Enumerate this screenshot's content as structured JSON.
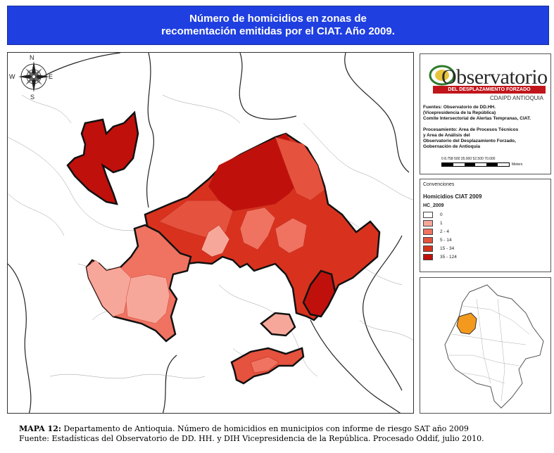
{
  "title": {
    "line1": "Número de homicidios en zonas de",
    "line2": "recomentación emitidas por el CIAT. Año 2009."
  },
  "logo": {
    "main": "Observatorio",
    "bar": "DEL DESPLAZAMIENTO FORZADO",
    "sub": "CDAIPD ANTIOQUIA"
  },
  "sources": {
    "line1": "Fuentes: Observatorio de DD.HH.",
    "line2": "(Vicepresidencia de la República)",
    "line3": "Comite Intersectorial de Alertas Tempranas, CIAT."
  },
  "processing": {
    "line1": "Procesamiento: Area de Procesos Técnicos",
    "line2": "y Area de Análisis del",
    "line3": "Observatorio del Desplazamiento Forzado,",
    "line4": "Gobernación de Antioquia"
  },
  "scale": {
    "ticks": "0 8.758 500 35.000 52.500 70.000",
    "units": "Meters"
  },
  "compass": {
    "n": "N",
    "s": "S",
    "e": "E",
    "w": "W"
  },
  "legend": {
    "header": "Convenciones",
    "title": "Homicidios CIAT 2009",
    "field": "HC_2009",
    "classes": [
      {
        "label": "0",
        "color": "#ffffff"
      },
      {
        "label": "1",
        "color": "#f7a79a"
      },
      {
        "label": "2 - 4",
        "color": "#f07260"
      },
      {
        "label": "5 - 14",
        "color": "#e5523e"
      },
      {
        "label": "15 - 34",
        "color": "#d8321f"
      },
      {
        "label": "35 - 124",
        "color": "#c0100c"
      }
    ]
  },
  "caption": {
    "label": "MAPA 12:",
    "line1": " Departamento de Antioquia. Número de homicidios en municipios con informe de riesgo SAT año 2009",
    "line2": "Fuente: Estadísticas del Observatorio de DD. HH. y DIH Vicepresidencia de la República. Procesado Oddif, julio 2010."
  },
  "colors": {
    "title_bg": "#1f3fe0",
    "inset_highlight": "#f39a1e"
  }
}
